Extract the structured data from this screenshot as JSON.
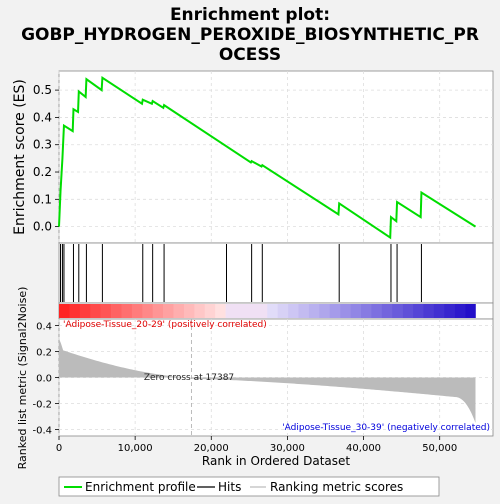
{
  "chart_data": {
    "type": "line",
    "title_line1": "Enrichment plot:",
    "title_line2": "GOBP_HYDROGEN_PEROXIDE_BIOSYNTHETIC_PR",
    "title_line3": "OCESS",
    "es_ylabel": "Enrichment score (ES)",
    "rank_ylabel": "Ranked list metric (Signal2Noise)",
    "xlabel": "Rank in Ordered Dataset",
    "x_range": [
      0,
      57000
    ],
    "es_range": [
      -0.06,
      0.57
    ],
    "rank_range": [
      -0.45,
      0.45
    ],
    "x_ticks": [
      0,
      10000,
      20000,
      30000,
      40000,
      50000
    ],
    "x_tick_labels": [
      "0",
      "10,000",
      "20,000",
      "30,000",
      "40,000",
      "50,000"
    ],
    "es_ticks": [
      0.0,
      0.1,
      0.2,
      0.3,
      0.4,
      0.5
    ],
    "es_tick_labels": [
      "0.0",
      "0.1",
      "0.2",
      "0.3",
      "0.4",
      "0.5"
    ],
    "rank_ticks": [
      -0.4,
      -0.2,
      0.0,
      0.2,
      0.4
    ],
    "rank_tick_labels": [
      "-0.4",
      "-0.2",
      "0.0",
      "0.2",
      "0.4"
    ],
    "zero_cross_label": "Zero cross at 17387",
    "zero_cross": 17387,
    "positive_label": "'Adipose-Tissue_20-29' (positively correlated)",
    "negative_label": "'Adipose-Tissue_30-39' (negatively correlated)",
    "n_genes": 54700,
    "hits": [
      200,
      450,
      650,
      1900,
      2600,
      3600,
      5700,
      11000,
      12300,
      13800,
      22000,
      25300,
      26700,
      36800,
      43600,
      44400,
      47600
    ],
    "es_points": [
      [
        0,
        0
      ],
      [
        200,
        0.13
      ],
      [
        450,
        0.25
      ],
      [
        650,
        0.37
      ],
      [
        1800,
        0.35
      ],
      [
        1900,
        0.43
      ],
      [
        2500,
        0.42
      ],
      [
        2600,
        0.495
      ],
      [
        3500,
        0.475
      ],
      [
        3600,
        0.54
      ],
      [
        5600,
        0.5
      ],
      [
        5700,
        0.545
      ],
      [
        10900,
        0.45
      ],
      [
        11000,
        0.465
      ],
      [
        12200,
        0.45
      ],
      [
        12300,
        0.46
      ],
      [
        13700,
        0.435
      ],
      [
        13800,
        0.445
      ],
      [
        25200,
        0.235
      ],
      [
        25300,
        0.24
      ],
      [
        26600,
        0.22
      ],
      [
        26700,
        0.225
      ],
      [
        36700,
        0.045
      ],
      [
        36800,
        0.085
      ],
      [
        43500,
        -0.04
      ],
      [
        43600,
        0.035
      ],
      [
        44300,
        0.02
      ],
      [
        44400,
        0.09
      ],
      [
        47500,
        0.035
      ],
      [
        47600,
        0.125
      ],
      [
        54700,
        0.0
      ]
    ],
    "series": [
      {
        "name": "Enrichment profile",
        "color": "#00dd00"
      },
      {
        "name": "Hits",
        "color": "#000000"
      },
      {
        "name": "Ranking metric scores",
        "color": "#bbbbbb"
      }
    ],
    "grid": true,
    "legend_position": "bottom"
  }
}
